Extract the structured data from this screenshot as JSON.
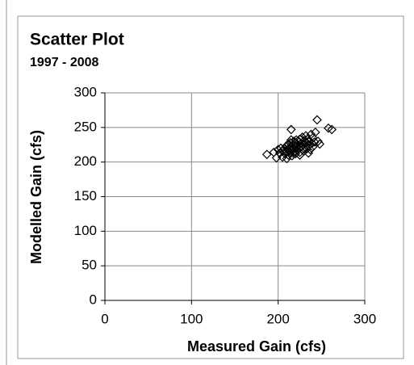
{
  "chart_data": {
    "type": "scatter",
    "title": "Scatter Plot",
    "subtitle": "1997 - 2008",
    "x_label": "Measured Gain (cfs)",
    "y_label": "Modelled Gain (cfs)",
    "xlim": [
      0,
      300
    ],
    "xticks": [
      0,
      100,
      200,
      300
    ],
    "ylim": [
      0,
      300
    ],
    "yticks": [
      0,
      50,
      100,
      150,
      200,
      250,
      300
    ],
    "grid": true,
    "color": "#000000",
    "x": [
      187,
      195,
      198,
      200,
      202,
      203,
      205,
      205,
      207,
      208,
      209,
      210,
      210,
      211,
      212,
      212,
      213,
      214,
      214,
      215,
      215,
      216,
      216,
      217,
      217,
      218,
      218,
      219,
      219,
      220,
      220,
      221,
      221,
      222,
      222,
      223,
      224,
      224,
      225,
      225,
      226,
      227,
      228,
      228,
      229,
      230,
      230,
      231,
      232,
      233,
      233,
      234,
      235,
      236,
      237,
      238,
      239,
      240,
      240,
      242,
      243,
      245,
      246,
      248,
      258,
      262,
      215,
      210,
      225,
      235
    ],
    "values": [
      211,
      214,
      206,
      218,
      213,
      220,
      207,
      216,
      219,
      212,
      222,
      215,
      224,
      218,
      210,
      226,
      220,
      214,
      228,
      247,
      222,
      209,
      218,
      225,
      213,
      230,
      219,
      223,
      215,
      228,
      212,
      221,
      232,
      217,
      226,
      224,
      219,
      229,
      214,
      233,
      222,
      227,
      218,
      236,
      225,
      231,
      216,
      222,
      238,
      228,
      219,
      233,
      224,
      230,
      218,
      240,
      227,
      235,
      222,
      229,
      243,
      261,
      230,
      226,
      249,
      247,
      232,
      205,
      210,
      213
    ]
  }
}
